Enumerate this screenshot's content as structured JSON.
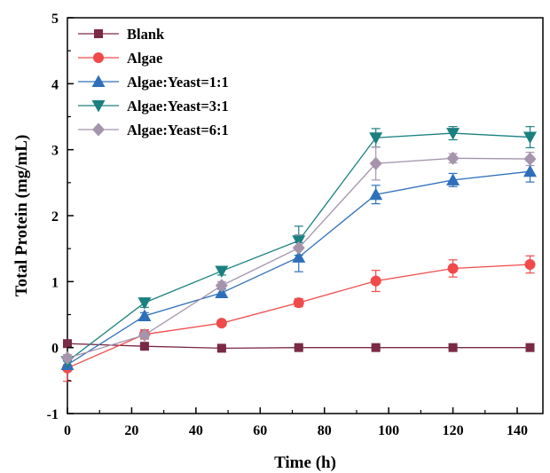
{
  "chart_data": {
    "type": "line",
    "xlabel": "Time (h)",
    "ylabel": "Total Protein (mg/mL)",
    "xlim": [
      0,
      148
    ],
    "ylim": [
      -1,
      5
    ],
    "xticks": [
      0,
      20,
      40,
      60,
      80,
      100,
      120,
      140
    ],
    "yticks": [
      -1,
      0,
      1,
      2,
      3,
      4,
      5
    ],
    "grid": false,
    "legend_position": "top-left",
    "series": [
      {
        "name": "Blank",
        "color": "#7a2a44",
        "marker": "square",
        "x": [
          0,
          24,
          48,
          72,
          96,
          120,
          144
        ],
        "y": [
          0.06,
          0.02,
          -0.01,
          0.0,
          0.0,
          0.0,
          0.0
        ],
        "err": [
          0.03,
          0.02,
          0.02,
          0.02,
          0.02,
          0.02,
          0.02
        ]
      },
      {
        "name": "Algae",
        "color": "#f04a4a",
        "marker": "circle",
        "x": [
          0,
          24,
          48,
          72,
          96,
          120,
          144
        ],
        "y": [
          -0.31,
          0.2,
          0.37,
          0.68,
          1.01,
          1.2,
          1.26
        ],
        "err": [
          0.2,
          0.07,
          0.04,
          0.06,
          0.16,
          0.13,
          0.13
        ]
      },
      {
        "name": "Algae:Yeast=1:1",
        "color": "#2e6fbb",
        "marker": "triangle-up",
        "x": [
          0,
          24,
          48,
          72,
          96,
          120,
          144
        ],
        "y": [
          -0.26,
          0.48,
          0.83,
          1.37,
          2.32,
          2.54,
          2.67
        ],
        "err": [
          0.06,
          0.05,
          0.06,
          0.22,
          0.14,
          0.1,
          0.16
        ]
      },
      {
        "name": "Algae:Yeast=3:1",
        "color": "#1a8080",
        "marker": "triangle-down",
        "x": [
          0,
          24,
          48,
          72,
          96,
          120,
          144
        ],
        "y": [
          -0.21,
          0.68,
          1.16,
          1.62,
          3.18,
          3.25,
          3.19
        ],
        "err": [
          0.05,
          0.07,
          0.06,
          0.22,
          0.14,
          0.1,
          0.16
        ]
      },
      {
        "name": "Algae:Yeast=6:1",
        "color": "#a594ac",
        "marker": "diamond",
        "x": [
          0,
          24,
          48,
          72,
          96,
          120,
          144
        ],
        "y": [
          -0.16,
          0.19,
          0.94,
          1.51,
          2.79,
          2.87,
          2.86
        ],
        "err": [
          0.05,
          0.05,
          0.06,
          0.2,
          0.25,
          0.07,
          0.1
        ]
      }
    ]
  }
}
